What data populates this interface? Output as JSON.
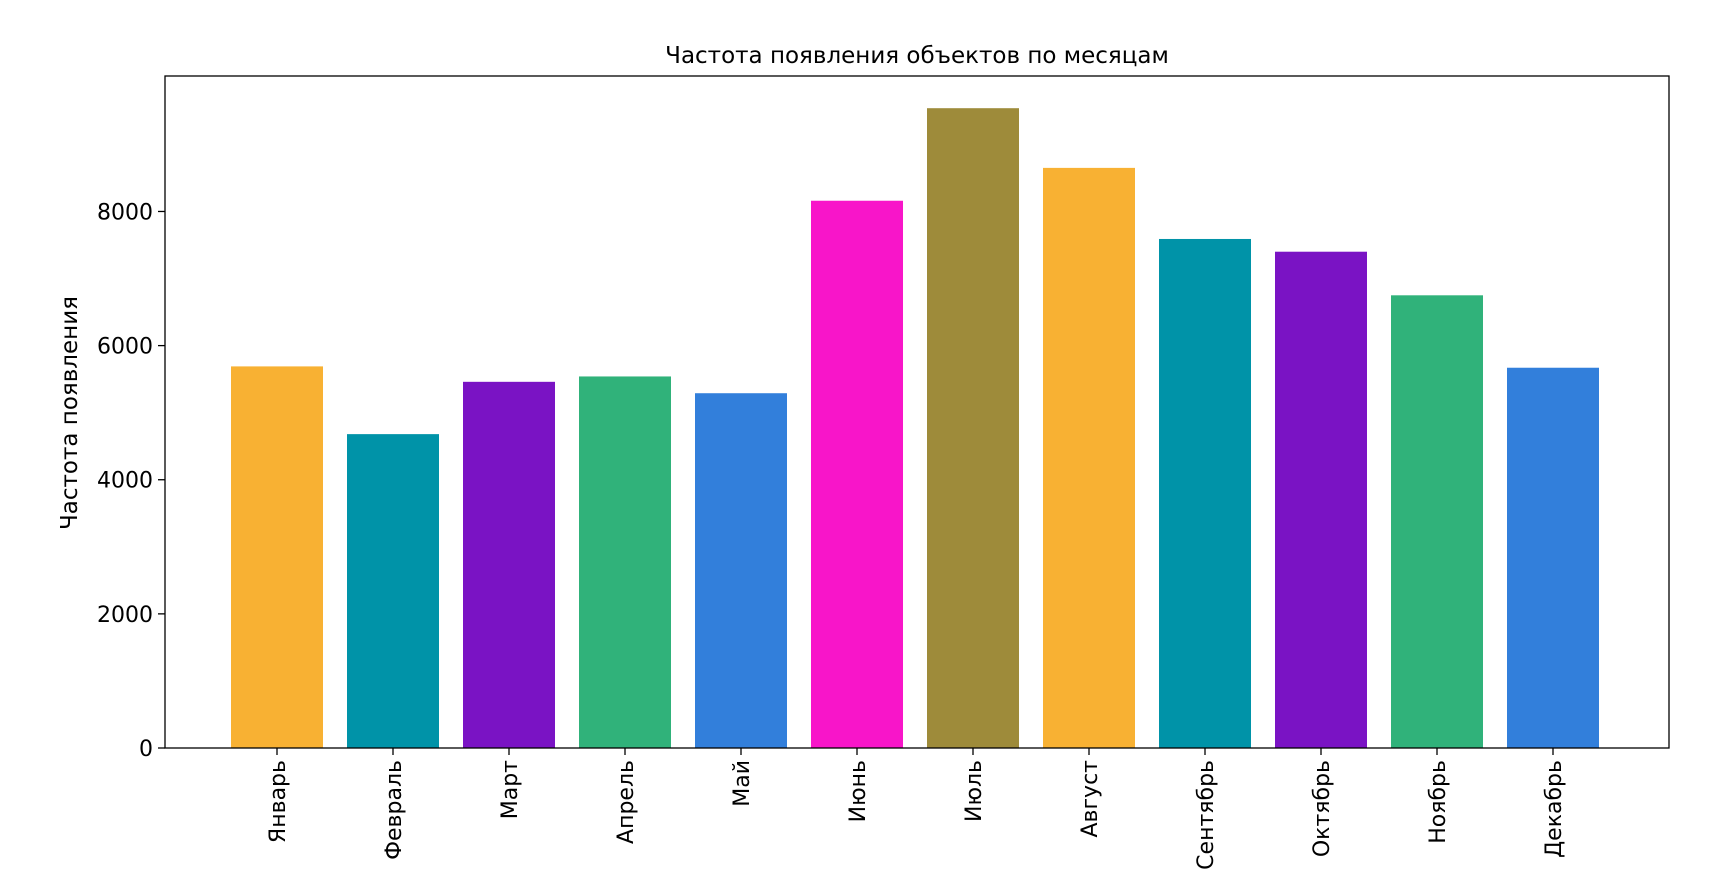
{
  "chart_data": {
    "type": "bar",
    "title": "Частота появления объектов по месяцам",
    "xlabel": "",
    "ylabel": "Частота появления",
    "categories": [
      "Январь",
      "Февраль",
      "Март",
      "Апрель",
      "Май",
      "Июнь",
      "Июль",
      "Август",
      "Сентябрь",
      "Октябрь",
      "Ноябрь",
      "Декабрь"
    ],
    "values": [
      5690,
      4680,
      5460,
      5540,
      5290,
      8160,
      9540,
      8650,
      7590,
      7400,
      6750,
      5670
    ],
    "colors": [
      "#f8b133",
      "#0093a8",
      "#7a13c4",
      "#30b27a",
      "#327fdb",
      "#f815c9",
      "#9e8b3a",
      "#f8b133",
      "#0093a8",
      "#7a13c4",
      "#30b27a",
      "#327fdb"
    ],
    "ylim": [
      0,
      10020
    ],
    "yticks": [
      0,
      2000,
      4000,
      6000,
      8000
    ],
    "ytick_labels": [
      "0",
      "2000",
      "4000",
      "6000",
      "8000"
    ],
    "grid": false,
    "legend": "none"
  }
}
